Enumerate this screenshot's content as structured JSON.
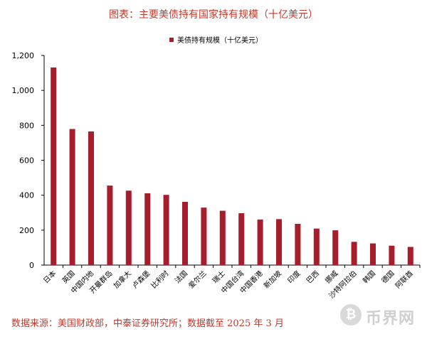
{
  "header": {
    "title": "图表：主要美债持有国家持有规模（十亿美元）"
  },
  "footer": {
    "source": "数据来源：美国财政部，中泰证券研究所；数据截至 2025 年 3 月"
  },
  "watermark": {
    "text": "币界网",
    "icon": "bitcoin-circle-icon"
  },
  "colors": {
    "bar": "#a61d2b",
    "title": "#c0392b",
    "axis": "#000000"
  },
  "chart_data": {
    "type": "bar",
    "title": "图表：主要美债持有国家持有规模（十亿美元）",
    "legend": {
      "position": "top",
      "label": "美债持有规模（十亿美元）"
    },
    "categories": [
      "日本",
      "英国",
      "中国内地",
      "开曼群岛",
      "加拿大",
      "卢森堡",
      "比利时",
      "法国",
      "爱尔兰",
      "瑞士",
      "中国台湾",
      "中国香港",
      "新加坡",
      "印度",
      "巴西",
      "挪威",
      "沙特阿拉伯",
      "韩国",
      "德国",
      "阿联酋"
    ],
    "series": [
      {
        "name": "美债持有规模（十亿美元）",
        "values": [
          1131,
          779,
          765,
          455,
          426,
          411,
          402,
          362,
          329,
          311,
          297,
          261,
          263,
          236,
          209,
          199,
          133,
          124,
          111,
          104
        ]
      }
    ],
    "ylim": [
      0,
      1200
    ],
    "yticks": [
      0,
      200,
      400,
      600,
      800,
      1000,
      1200
    ],
    "ytick_labels": [
      "0",
      "200",
      "400",
      "600",
      "800",
      "1,000",
      "1,200"
    ],
    "grid": false
  }
}
